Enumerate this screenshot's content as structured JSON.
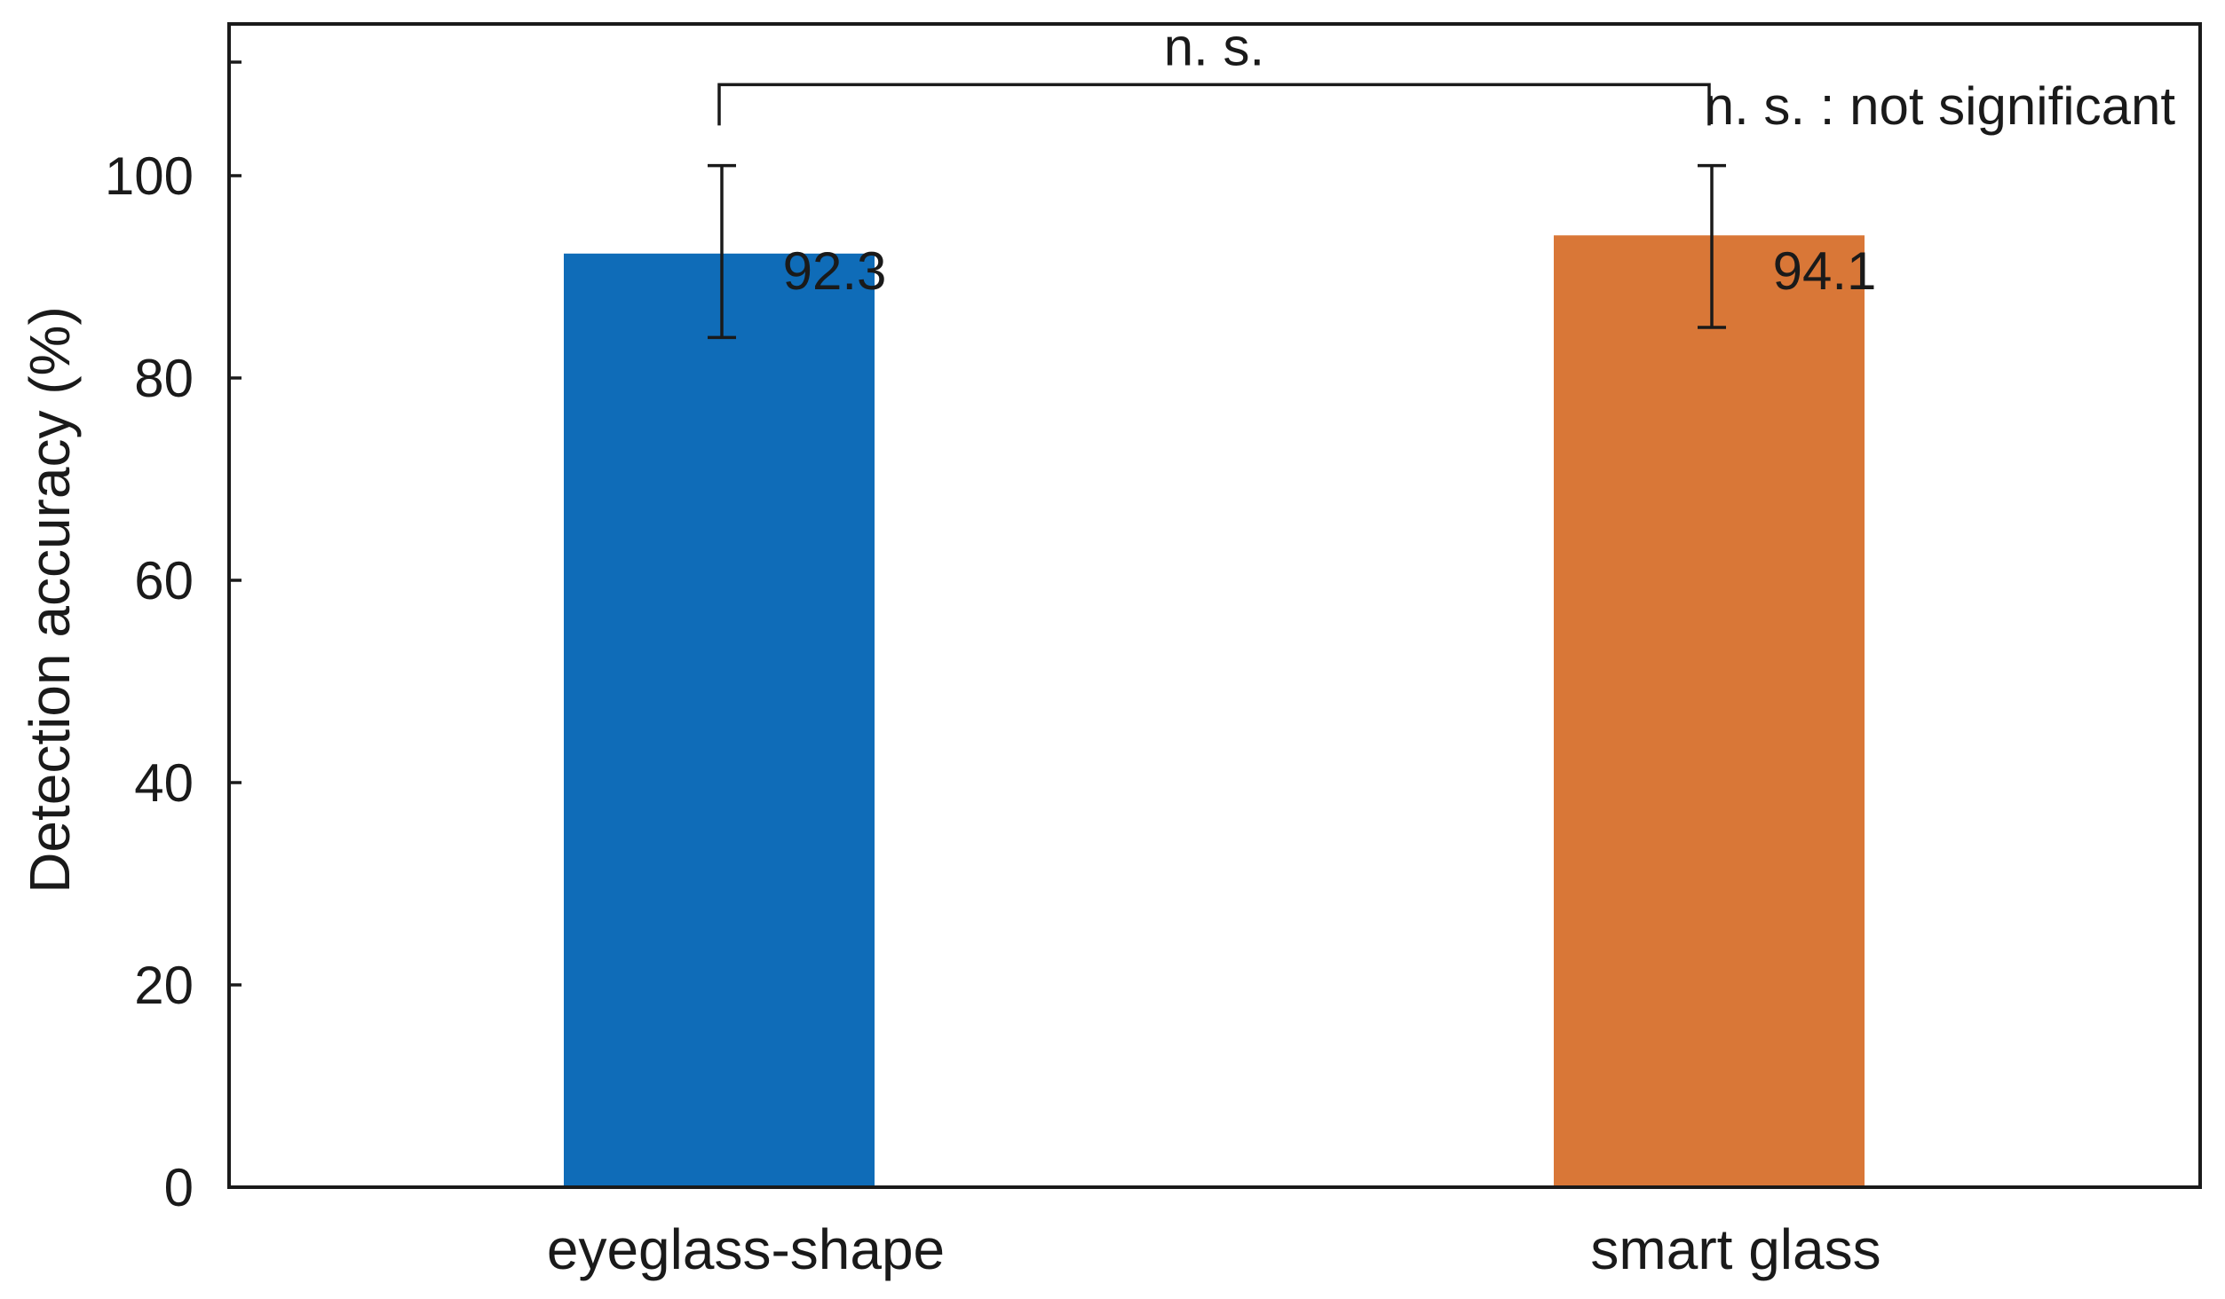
{
  "chart_data": {
    "type": "bar",
    "categories": [
      "eyeglass-shape",
      "smart glass"
    ],
    "values": [
      92.3,
      94.1
    ],
    "value_labels": [
      "92.3",
      "94.1"
    ],
    "error_bars": [
      {
        "low": 84,
        "high": 101
      },
      {
        "low": 85,
        "high": 101
      }
    ],
    "colors": [
      "#0F6CB8",
      "#D97737"
    ],
    "ylabel": "Detection accuracy (%)",
    "xlabel": "",
    "ylim": [
      0,
      115
    ],
    "yticks": [
      0,
      20,
      40,
      60,
      80,
      100
    ],
    "ytick_labels": [
      "0",
      "20",
      "40",
      "60",
      "80",
      "100"
    ],
    "significance": {
      "label": "n. s.",
      "between": [
        0,
        1
      ],
      "level": 109
    },
    "annotation": "n. s. : not significant",
    "grid": false
  }
}
